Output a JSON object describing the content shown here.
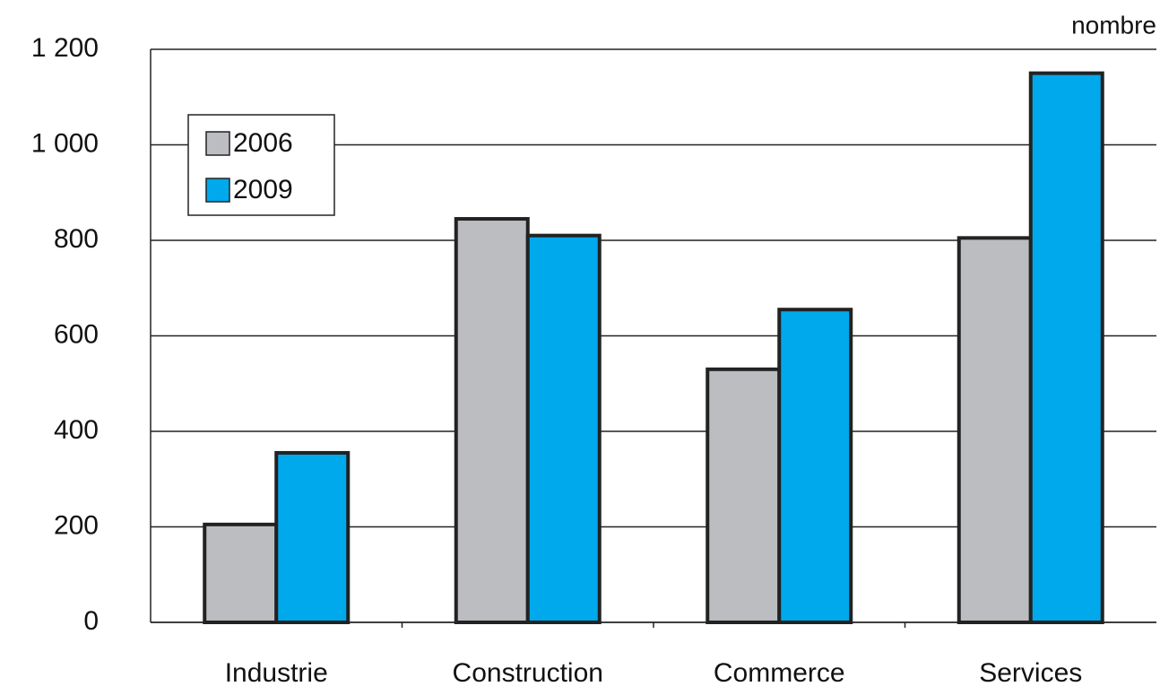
{
  "chart_data": {
    "type": "bar",
    "y_label": "nombre",
    "categories": [
      "Industrie",
      "Construction",
      "Commerce",
      "Services"
    ],
    "series": [
      {
        "name": "2006",
        "color": "#bcbdc1",
        "values": [
          205,
          845,
          530,
          805
        ]
      },
      {
        "name": "2009",
        "color": "#00a9ec",
        "values": [
          355,
          810,
          655,
          1150
        ]
      }
    ],
    "ylim": [
      0,
      1200
    ],
    "yticks": [
      0,
      200,
      400,
      600,
      800,
      {
        "value": 1000,
        "label": "1 000"
      },
      {
        "value": 1200,
        "label": "1 200"
      }
    ],
    "grid": true,
    "legend": "upper left"
  }
}
